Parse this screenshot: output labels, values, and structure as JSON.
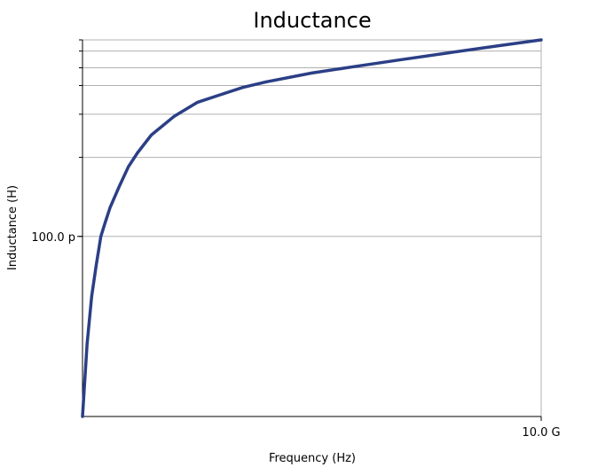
{
  "chart_data": {
    "type": "line",
    "title": "Inductance",
    "xlabel": "Frequency (Hz)",
    "ylabel": "Inductance (H)",
    "x_scale": "linear",
    "y_scale": "log",
    "xlim": [
      0,
      10000000000
    ],
    "ylim": [
      5.5e-11,
      1.92e-10
    ],
    "x_ticks": [
      {
        "value": 10000000000,
        "label": "10.0 G"
      }
    ],
    "y_ticks": [
      {
        "value": 1e-10,
        "label": "100.0 p"
      }
    ],
    "y_gridlines": [
      1e-10,
      1.3e-10,
      1.5e-10,
      1.65e-10,
      1.75e-10,
      1.85e-10,
      1.92e-10
    ],
    "grid": true,
    "series": [
      {
        "color": "#2b3f86",
        "x": [
          0,
          100000000,
          200000000,
          300000000,
          400000000,
          500000000,
          600000000,
          800000000,
          1000000000,
          1200000000,
          1500000000,
          2000000000,
          2500000000,
          3000000000,
          3500000000,
          4000000000,
          5000000000,
          6000000000,
          7000000000,
          8000000000,
          9000000000,
          10000000000
        ],
        "y": [
          5.5e-11,
          7e-11,
          8.2e-11,
          9.1e-11,
          1e-10,
          1.05e-10,
          1.1e-10,
          1.18e-10,
          1.26e-10,
          1.32e-10,
          1.4e-10,
          1.49e-10,
          1.56e-10,
          1.6e-10,
          1.64e-10,
          1.67e-10,
          1.72e-10,
          1.76e-10,
          1.8e-10,
          1.84e-10,
          1.88e-10,
          1.92e-10
        ]
      }
    ]
  }
}
